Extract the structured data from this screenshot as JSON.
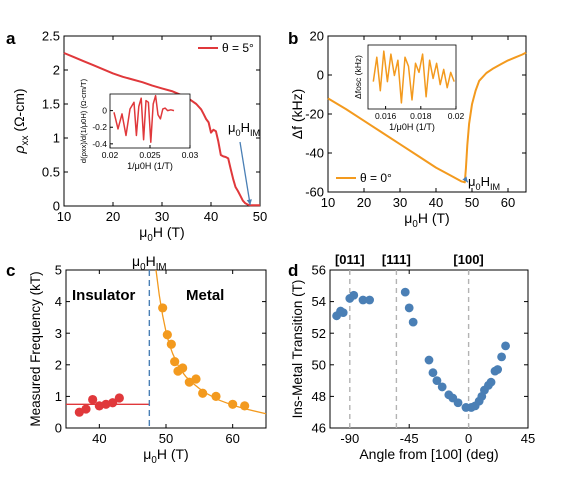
{
  "colors": {
    "red": "#e0383b",
    "orange": "#f39a1e",
    "blue": "#4a7fb5",
    "gray": "#b3b3b3",
    "dash_blue": "#4a7fb5"
  },
  "chart_data": [
    {
      "id": "a",
      "type": "line",
      "panel_label": "a",
      "xlabel_sym": "μ",
      "xlabel_sub": "0",
      "xlabel_rest": "H (T)",
      "ylabel_sym": "ρ",
      "ylabel_sub": "xx",
      "ylabel_rest": " (Ω-cm)",
      "xlim": [
        10,
        50
      ],
      "ylim": [
        0,
        2.5
      ],
      "xticks": [
        10,
        20,
        30,
        40,
        50
      ],
      "yticks": [
        0,
        0.5,
        1,
        1.5,
        2,
        2.5
      ],
      "ytick_labels": [
        "0",
        "0.5",
        "1",
        "1.5",
        "2",
        "2.5"
      ],
      "legend": "θ = 5°",
      "legend_position": "top-right",
      "annotation": "μ0HIM",
      "annotation_main": "μ",
      "annotation_sub": "0",
      "annotation_rest": "H",
      "annotation_sub2": "IM",
      "annotation_target": [
        48,
        0.0
      ],
      "series": [
        {
          "x": [
            10,
            12,
            14,
            16,
            18,
            20,
            22,
            24,
            26,
            28,
            30,
            32,
            34,
            35,
            36,
            37,
            38,
            38.5,
            39,
            39.5,
            40,
            40.5,
            41,
            41.5,
            42,
            42.5,
            43,
            43.5,
            44,
            44.5,
            45,
            45.5,
            46,
            46.5,
            47,
            47.5,
            48,
            49,
            50
          ],
          "y": [
            2.25,
            2.19,
            2.13,
            2.07,
            2.01,
            1.95,
            1.9,
            1.86,
            1.82,
            1.77,
            1.73,
            1.69,
            1.63,
            1.6,
            1.55,
            1.5,
            1.42,
            1.35,
            1.28,
            1.23,
            1.08,
            1.12,
            1.1,
            0.95,
            0.75,
            0.73,
            0.72,
            0.7,
            0.55,
            0.4,
            0.28,
            0.22,
            0.15,
            0.08,
            0.04,
            0.02,
            0.01,
            0.01,
            0.01
          ]
        }
      ],
      "inset": {
        "xlabel": "1/μ0H (1/T)",
        "ylabel": "d(ρxx)/d(1/μ0H) (Ω-cm/T)",
        "xlim": [
          0.02,
          0.03
        ],
        "ylim": [
          -0.45,
          0.2
        ],
        "xticks": [
          0.02,
          0.025,
          0.03
        ],
        "xtick_labels": [
          "0.02",
          "0.025",
          "0.03"
        ],
        "yticks": [
          -0.4,
          -0.2,
          0
        ],
        "ytick_labels": [
          "-0.4",
          "-0.2",
          "0"
        ],
        "x": [
          0.0205,
          0.021,
          0.0215,
          0.022,
          0.0225,
          0.023,
          0.0233,
          0.0236,
          0.0239,
          0.0242,
          0.0245,
          0.0248,
          0.0251,
          0.0254,
          0.0257,
          0.026,
          0.0263,
          0.0266,
          0.0269,
          0.0272,
          0.0276,
          0.028
        ],
        "y": [
          -0.02,
          -0.22,
          -0.04,
          -0.3,
          0.02,
          0.1,
          -0.3,
          0.05,
          0.15,
          -0.35,
          0.12,
          0.1,
          -0.38,
          0.08,
          0.18,
          -0.05,
          -0.1,
          0.02,
          0.03,
          0.0,
          0.01,
          0.0
        ]
      }
    },
    {
      "id": "b",
      "type": "line",
      "panel_label": "b",
      "xlabel_sym": "μ",
      "xlabel_sub": "0",
      "xlabel_rest": "H (T)",
      "ylabel": "Δf (kHz)",
      "xlim": [
        10,
        65
      ],
      "ylim": [
        -60,
        20
      ],
      "xticks": [
        10,
        20,
        30,
        40,
        50,
        60
      ],
      "yticks": [
        -60,
        -40,
        -20,
        0,
        20
      ],
      "legend": "θ = 0°",
      "legend_position": "bottom-left",
      "annotation_main": "μ",
      "annotation_sub": "0",
      "annotation_rest": "H",
      "annotation_sub2": "IM",
      "annotation_target": [
        48,
        -55
      ],
      "series": [
        {
          "x": [
            10,
            15,
            20,
            25,
            30,
            35,
            40,
            44,
            47,
            48,
            48.3,
            48.7,
            49.2,
            50,
            51,
            52,
            54,
            56,
            58,
            60,
            62,
            64,
            65
          ],
          "y": [
            -12,
            -17.5,
            -23.5,
            -29.5,
            -35.5,
            -41.5,
            -47.5,
            -51.5,
            -54.5,
            -55,
            -48,
            -36,
            -25,
            -15,
            -8,
            -3,
            1,
            3.5,
            5.5,
            7.5,
            9,
            10.5,
            11.5
          ]
        }
      ],
      "inset": {
        "xlabel": "1/μ0H (1/T)",
        "ylabel": "Δfosc (kHz)",
        "xlim": [
          0.015,
          0.02
        ],
        "ylim": [
          -1.1,
          1.0
        ],
        "xticks": [
          0.016,
          0.018,
          0.02
        ],
        "xtick_labels": [
          "0.016",
          "0.018",
          "0.02"
        ],
        "x": [
          0.0153,
          0.0155,
          0.0157,
          0.0159,
          0.0161,
          0.0163,
          0.0165,
          0.0167,
          0.0169,
          0.0171,
          0.0173,
          0.0175,
          0.0177,
          0.0179,
          0.0181,
          0.0183,
          0.0185,
          0.0187,
          0.0189,
          0.0191,
          0.0193,
          0.0195,
          0.0197,
          0.0199
        ],
        "y": [
          -0.2,
          0.6,
          -0.5,
          0.8,
          -0.2,
          0.7,
          0.0,
          0.5,
          -0.9,
          0.6,
          0.3,
          -0.8,
          0.4,
          0.1,
          0.7,
          -0.7,
          0.5,
          -0.1,
          0.4,
          -0.3,
          0.2,
          -0.4,
          0.1,
          -0.2
        ]
      }
    },
    {
      "id": "c",
      "type": "scatter",
      "panel_label": "c",
      "xlabel_sym": "μ",
      "xlabel_sub": "0",
      "xlabel_rest": "H (T)",
      "ylabel": "Measured Frequency (kT)",
      "xlim": [
        35,
        65
      ],
      "ylim": [
        0,
        5
      ],
      "xticks": [
        40,
        50,
        60
      ],
      "yticks": [
        0,
        1,
        2,
        3,
        4,
        5
      ],
      "label_insulator": "Insulator",
      "label_metal": "Metal",
      "transition_x": 47.5,
      "annotation_main": "μ",
      "annotation_sub": "0",
      "annotation_rest": "H",
      "annotation_sub2": "IM",
      "insulator_level": 0.75,
      "series": [
        {
          "name": "Insulator",
          "x": [
            37,
            38,
            39,
            40,
            41,
            42,
            43
          ],
          "y": [
            0.5,
            0.6,
            0.9,
            0.7,
            0.75,
            0.8,
            0.95
          ]
        },
        {
          "name": "Metal",
          "x": [
            49.5,
            50.2,
            50.8,
            51.3,
            51.8,
            52.5,
            53.5,
            54.5,
            55.5,
            57.5,
            60,
            61.8
          ],
          "y": [
            3.8,
            2.95,
            2.65,
            2.1,
            1.8,
            1.9,
            1.45,
            1.55,
            1.1,
            1.0,
            0.75,
            0.7
          ]
        }
      ],
      "fit": {
        "x": [
          48.5,
          49,
          49.5,
          50,
          50.5,
          51,
          52,
          53,
          54,
          55,
          56,
          58,
          60,
          62,
          65
        ],
        "y": [
          5.0,
          4.2,
          3.55,
          3.05,
          2.65,
          2.35,
          1.9,
          1.62,
          1.42,
          1.25,
          1.1,
          0.88,
          0.72,
          0.6,
          0.45
        ]
      }
    },
    {
      "id": "d",
      "type": "scatter",
      "panel_label": "d",
      "xlabel": "Angle from [100] (deg)",
      "ylabel": "Ins-Metal Transition (T)",
      "xlim": [
        -105,
        45
      ],
      "ylim": [
        46,
        56
      ],
      "xticks": [
        -90,
        -45,
        0,
        45
      ],
      "yticks": [
        46,
        48,
        50,
        52,
        54,
        56
      ],
      "direction_lines": [
        {
          "label": "[011]",
          "x": -90
        },
        {
          "label": "[111]",
          "x": -54.7
        },
        {
          "label": "[100]",
          "x": 0
        }
      ],
      "series": [
        {
          "x": [
            -100,
            -97,
            -95,
            -90,
            -87,
            -80,
            -75,
            -48,
            -45,
            -42,
            -30,
            -27,
            -24,
            -20,
            -15,
            -12,
            -8,
            -2,
            2,
            5,
            8,
            10,
            12,
            15,
            17,
            20,
            22,
            25,
            28
          ],
          "y": [
            53.1,
            53.4,
            53.3,
            54.2,
            54.4,
            54.1,
            54.1,
            54.6,
            53.6,
            52.7,
            50.3,
            49.5,
            49.0,
            48.6,
            48.1,
            47.9,
            47.6,
            47.3,
            47.3,
            47.4,
            47.7,
            48.0,
            48.4,
            48.7,
            48.9,
            49.6,
            49.7,
            50.5,
            51.2
          ]
        }
      ]
    }
  ]
}
